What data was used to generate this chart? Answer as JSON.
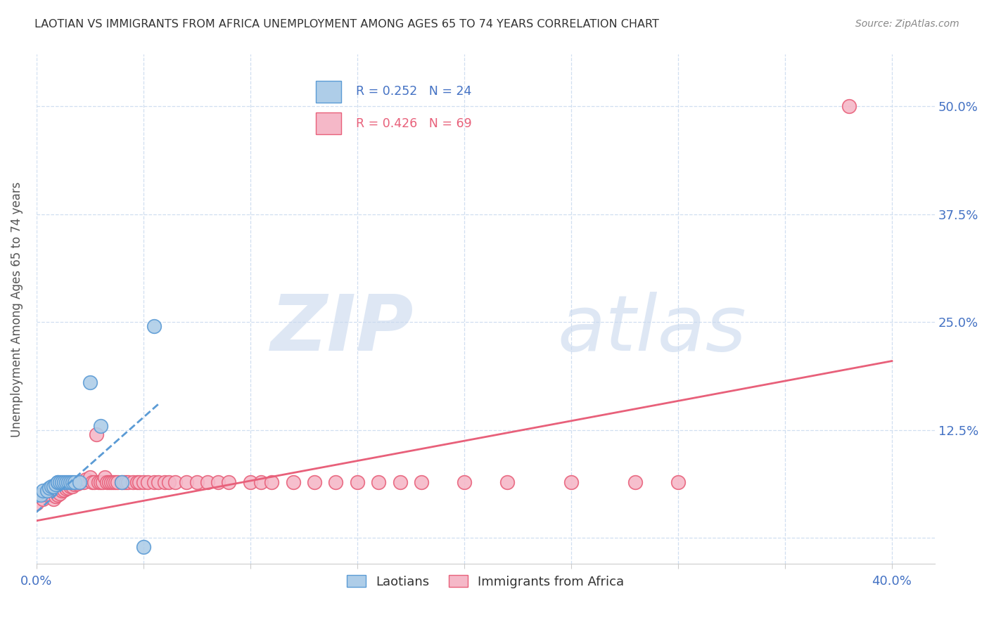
{
  "title": "LAOTIAN VS IMMIGRANTS FROM AFRICA UNEMPLOYMENT AMONG AGES 65 TO 74 YEARS CORRELATION CHART",
  "source": "Source: ZipAtlas.com",
  "ylabel": "Unemployment Among Ages 65 to 74 years",
  "xlim": [
    0.0,
    0.42
  ],
  "ylim": [
    -0.03,
    0.56
  ],
  "x_ticks": [
    0.0,
    0.05,
    0.1,
    0.15,
    0.2,
    0.25,
    0.3,
    0.35,
    0.4
  ],
  "y_ticks": [
    0.0,
    0.125,
    0.25,
    0.375,
    0.5
  ],
  "y_tick_labels": [
    "",
    "12.5%",
    "25.0%",
    "37.5%",
    "50.0%"
  ],
  "laotian_R": 0.252,
  "laotian_N": 24,
  "africa_R": 0.426,
  "africa_N": 69,
  "laotian_color": "#aecde8",
  "laotian_edge_color": "#5b9bd5",
  "africa_color": "#f5b8c8",
  "africa_edge_color": "#e8607a",
  "laotian_line_color": "#5b9bd5",
  "africa_line_color": "#e8607a",
  "grid_color": "#d0dff0",
  "laotian_x": [
    0.0,
    0.002,
    0.003,
    0.005,
    0.006,
    0.007,
    0.008,
    0.009,
    0.01,
    0.01,
    0.011,
    0.012,
    0.013,
    0.014,
    0.015,
    0.016,
    0.017,
    0.018,
    0.02,
    0.025,
    0.03,
    0.04,
    0.05,
    0.055
  ],
  "laotian_y": [
    0.05,
    0.05,
    0.055,
    0.055,
    0.058,
    0.06,
    0.06,
    0.062,
    0.065,
    0.065,
    0.065,
    0.065,
    0.065,
    0.065,
    0.065,
    0.065,
    0.065,
    0.065,
    0.065,
    0.18,
    0.13,
    0.065,
    -0.01,
    0.245
  ],
  "africa_x": [
    0.0,
    0.003,
    0.005,
    0.007,
    0.008,
    0.009,
    0.01,
    0.011,
    0.012,
    0.013,
    0.014,
    0.015,
    0.016,
    0.017,
    0.018,
    0.019,
    0.02,
    0.021,
    0.022,
    0.023,
    0.025,
    0.026,
    0.027,
    0.028,
    0.029,
    0.03,
    0.031,
    0.032,
    0.033,
    0.034,
    0.035,
    0.036,
    0.037,
    0.038,
    0.04,
    0.041,
    0.042,
    0.043,
    0.045,
    0.047,
    0.048,
    0.05,
    0.052,
    0.055,
    0.057,
    0.06,
    0.062,
    0.065,
    0.07,
    0.075,
    0.08,
    0.085,
    0.09,
    0.1,
    0.105,
    0.11,
    0.12,
    0.13,
    0.14,
    0.15,
    0.16,
    0.17,
    0.18,
    0.2,
    0.22,
    0.25,
    0.28,
    0.3,
    0.38
  ],
  "africa_y": [
    0.04,
    0.045,
    0.05,
    0.05,
    0.045,
    0.048,
    0.05,
    0.052,
    0.055,
    0.056,
    0.057,
    0.058,
    0.06,
    0.06,
    0.062,
    0.063,
    0.065,
    0.065,
    0.065,
    0.068,
    0.07,
    0.065,
    0.065,
    0.12,
    0.065,
    0.065,
    0.065,
    0.07,
    0.065,
    0.065,
    0.065,
    0.065,
    0.065,
    0.065,
    0.065,
    0.065,
    0.065,
    0.065,
    0.065,
    0.065,
    0.065,
    0.065,
    0.065,
    0.065,
    0.065,
    0.065,
    0.065,
    0.065,
    0.065,
    0.065,
    0.065,
    0.065,
    0.065,
    0.065,
    0.065,
    0.065,
    0.065,
    0.065,
    0.065,
    0.065,
    0.065,
    0.065,
    0.065,
    0.065,
    0.065,
    0.065,
    0.065,
    0.065,
    0.5
  ],
  "lao_line_x0": 0.0,
  "lao_line_x1": 0.057,
  "lao_line_y0": 0.03,
  "lao_line_y1": 0.155,
  "africa_line_x0": 0.0,
  "africa_line_x1": 0.4,
  "africa_line_y0": 0.02,
  "africa_line_y1": 0.205
}
